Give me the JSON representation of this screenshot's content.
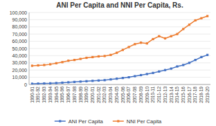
{
  "chart_data": {
    "type": "line",
    "title": "ANI Per Capita and NNI Per Capita, Rs.",
    "categories": [
      "1990-91",
      "1991-92",
      "1992-93",
      "1993-94",
      "1994-95",
      "1995-96",
      "1996-97",
      "1997-98",
      "1998-99",
      "1999-00",
      "2000-01",
      "2001-02",
      "2002-03",
      "2003-04",
      "2004-05",
      "2005-06",
      "2006-07",
      "2007-08",
      "2008-09",
      "2009-10",
      "2010-11",
      "2011-12",
      "2012-13",
      "2013-14",
      "2014-15",
      "2015-16",
      "2016-17",
      "2017-18",
      "2018-19",
      "2019-20"
    ],
    "series": [
      {
        "name": "ANI Per Capita",
        "color": "#4472c4",
        "marker": "square",
        "values": [
          1000,
          1200,
          1400,
          1600,
          2000,
          2500,
          3000,
          3500,
          4000,
          4500,
          5000,
          5500,
          6000,
          7000,
          8000,
          9000,
          10000,
          11500,
          13000,
          14500,
          16000,
          18000,
          20000,
          22000,
          25000,
          27000,
          30000,
          34000,
          38000,
          41000
        ]
      },
      {
        "name": "NNI Per Capita",
        "color": "#ed7d31",
        "marker": "square",
        "values": [
          26000,
          26500,
          27000,
          28000,
          29500,
          31000,
          33000,
          34000,
          35500,
          37000,
          38000,
          39000,
          39500,
          41000,
          44000,
          48000,
          52000,
          56000,
          58000,
          57000,
          63000,
          67000,
          64000,
          67000,
          70000,
          77000,
          83000,
          89000,
          92000,
          95000
        ]
      }
    ],
    "ylim": [
      0,
      100000
    ],
    "yticks": [
      0,
      {
        "value": 10000,
        "label": "10,000"
      },
      {
        "value": 20000,
        "label": "20,000"
      },
      {
        "value": 30000,
        "label": "30,000"
      },
      {
        "value": 40000,
        "label": "40,000"
      },
      {
        "value": 50000,
        "label": "50,000"
      },
      {
        "value": 60000,
        "label": "60,000"
      },
      {
        "value": 70000,
        "label": "70,000"
      },
      {
        "value": 80000,
        "label": "80,000"
      },
      {
        "value": 90000,
        "label": "90,000"
      },
      {
        "value": 100000,
        "label": "100,000"
      }
    ],
    "grid": true,
    "legend": "bottom"
  }
}
